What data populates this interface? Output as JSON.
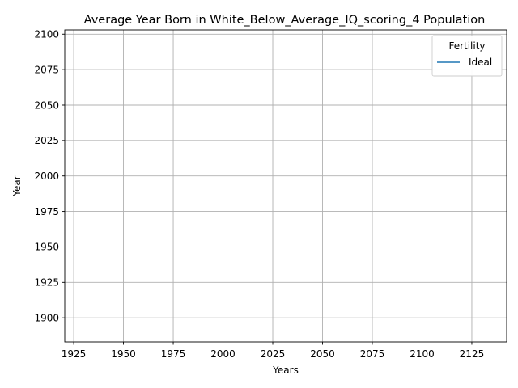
{
  "chart_data": {
    "type": "line",
    "title": "Average Year Born in White_Below_Average_IQ_scoring_4 Population",
    "xlabel": "Years",
    "ylabel": "Year",
    "xlim": [
      1920.5,
      2142.5
    ],
    "ylim": [
      1883,
      2103
    ],
    "xticks": [
      1925,
      1950,
      1975,
      2000,
      2025,
      2050,
      2075,
      2100,
      2125
    ],
    "yticks": [
      1900,
      1925,
      1950,
      1975,
      2000,
      2025,
      2050,
      2075,
      2100
    ],
    "grid": true,
    "legend": {
      "title": "Fertility",
      "position": "top-right"
    },
    "series": [
      {
        "name": "Ideal",
        "color": "#1f77b4",
        "x": [],
        "y": []
      }
    ]
  }
}
